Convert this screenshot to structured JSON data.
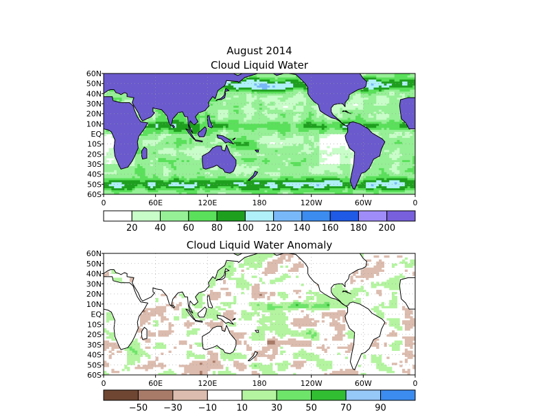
{
  "figure": {
    "title": "August 2014",
    "colors": {
      "ocean_background": "#ffffff",
      "land_fill_top": "#6a5acd",
      "coastline": "#000000",
      "grid_dots": "#9a9a9a"
    }
  },
  "panels": [
    {
      "id": "clw",
      "title": "Cloud Liquid Water",
      "lat_labels": [
        "60N",
        "50N",
        "40N",
        "30N",
        "20N",
        "10N",
        "EQ",
        "10S",
        "20S",
        "30S",
        "40S",
        "50S",
        "60S"
      ],
      "lon_labels": [
        "0",
        "60E",
        "120E",
        "180",
        "120W",
        "60W",
        "0"
      ],
      "colorbar": {
        "labels": [
          "20",
          "40",
          "60",
          "80",
          "100",
          "120",
          "140",
          "160",
          "180",
          "200"
        ],
        "colors": [
          "#ffffff",
          "#c8fcc8",
          "#96f096",
          "#5ae05a",
          "#1ea01e",
          "#b0f0f8",
          "#78b8f8",
          "#3c8cf0",
          "#1e5ae6",
          "#a08cf8",
          "#7860dc"
        ]
      }
    },
    {
      "id": "anom",
      "title": "Cloud Liquid Water Anomaly",
      "lat_labels": [
        "60N",
        "50N",
        "40N",
        "30N",
        "20N",
        "10N",
        "EQ",
        "10S",
        "20S",
        "30S",
        "40S",
        "50S",
        "60S"
      ],
      "lon_labels": [
        "0",
        "60E",
        "120E",
        "180",
        "120W",
        "60W",
        "0"
      ],
      "colorbar": {
        "labels": [
          "−50",
          "−30",
          "−10",
          "10",
          "30",
          "50",
          "70",
          "90"
        ],
        "colors": [
          "#6e4632",
          "#a87a68",
          "#dcbcae",
          "#ffffff",
          "#b4f4a0",
          "#6ee46a",
          "#32be32",
          "#96c8f8",
          "#3c8cf0"
        ]
      }
    }
  ]
}
